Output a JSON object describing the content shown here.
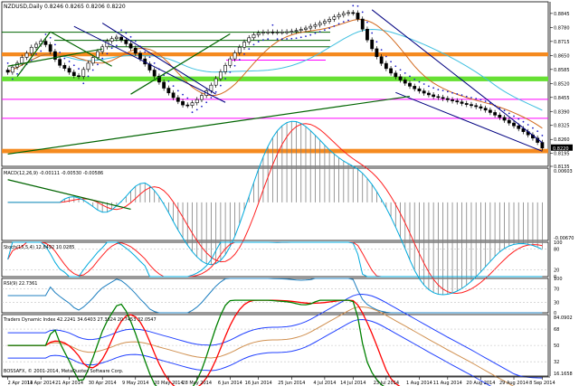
{
  "symbol_header": "NZDUSD,Daily  0.8246 0.8265 0.8206 0.8220",
  "copyright": "BOSSAFX, © 2001-2014, MetaQuotes Software Corp.",
  "colors": {
    "orange_zone": "#f58a1f",
    "green_zone": "#66e033",
    "bull_candle": "#ffffff",
    "bear_candle": "#000000",
    "sar": "#2020c8",
    "channel": "#000080",
    "trend": "#006400",
    "ma_fast": "#d2691e",
    "ma_slow": "#40c0e0",
    "support": "#ff00ff",
    "macd_signal": "#ff2020",
    "stoch_main": "#00aadd",
    "stoch_signal": "#ff2020",
    "rsi": "#2080c0",
    "tdi_price": "#008000",
    "tdi_signal": "#ff0000",
    "tdi_band": "#2040ff",
    "tdi_base": "#d09050"
  },
  "chart_data": [
    {
      "type": "candlestick",
      "name": "NZDUSD Daily",
      "x": [
        "2 Apr 2014",
        "3 Apr 2014",
        "4 Apr 2014",
        "7 Apr 2014",
        "8 Apr 2014",
        "9 Apr 2014",
        "10 Apr 2014",
        "11 Apr 2014",
        "14 Apr 2014",
        "15 Apr 2014",
        "16 Apr 2014",
        "17 Apr 2014",
        "18 Apr 2014",
        "21 Apr 2014",
        "22 Apr 2014",
        "23 Apr 2014",
        "24 Apr 2014",
        "25 Apr 2014",
        "28 Apr 2014",
        "29 Apr 2014",
        "30 Apr 2014",
        "1 May 2014",
        "2 May 2014",
        "5 May 2014",
        "6 May 2014",
        "7 May 2014",
        "8 May 2014",
        "9 May 2014",
        "12 May 2014",
        "13 May 2014",
        "14 May 2014",
        "15 May 2014",
        "16 May 2014",
        "19 May 2014",
        "20 May 2014",
        "21 May 2014",
        "22 May 2014",
        "23 May 2014",
        "26 May 2014",
        "27 May 2014",
        "28 May 2014",
        "29 May 2014",
        "30 May 2014",
        "2 Jun 2014",
        "3 Jun 2014",
        "4 Jun 2014",
        "5 Jun 2014",
        "6 Jun 2014",
        "9 Jun 2014",
        "10 Jun 2014",
        "11 Jun 2014",
        "12 Jun 2014",
        "13 Jun 2014",
        "16 Jun 2014",
        "17 Jun 2014",
        "18 Jun 2014",
        "19 Jun 2014",
        "20 Jun 2014",
        "23 Jun 2014",
        "24 Jun 2014",
        "25 Jun 2014",
        "26 Jun 2014",
        "27 Jun 2014",
        "30 Jun 2014",
        "1 Jul 2014",
        "2 Jul 2014",
        "3 Jul 2014",
        "4 Jul 2014",
        "7 Jul 2014",
        "8 Jul 2014",
        "9 Jul 2014",
        "10 Jul 2014",
        "11 Jul 2014",
        "14 Jul 2014",
        "15 Jul 2014",
        "16 Jul 2014",
        "17 Jul 2014",
        "18 Jul 2014",
        "21 Jul 2014",
        "22 Jul 2014",
        "23 Jul 2014",
        "24 Jul 2014",
        "25 Jul 2014",
        "28 Jul 2014",
        "29 Jul 2014",
        "30 Jul 2014",
        "31 Jul 2014",
        "1 Aug 2014",
        "4 Aug 2014",
        "5 Aug 2014",
        "6 Aug 2014",
        "7 Aug 2014",
        "8 Aug 2014",
        "11 Aug 2014",
        "12 Aug 2014",
        "13 Aug 2014",
        "14 Aug 2014",
        "15 Aug 2014",
        "18 Aug 2014",
        "19 Aug 2014",
        "20 Aug 2014",
        "21 Aug 2014",
        "22 Aug 2014",
        "25 Aug 2014",
        "26 Aug 2014",
        "27 Aug 2014",
        "28 Aug 2014",
        "29 Aug 2014",
        "1 Sep 2014",
        "2 Sep 2014",
        "3 Sep 2014",
        "4 Sep 2014",
        "5 Sep 2014",
        "8 Sep 2014"
      ],
      "close": [
        0.8572,
        0.8596,
        0.8614,
        0.8641,
        0.866,
        0.8688,
        0.8702,
        0.8716,
        0.87,
        0.8668,
        0.8632,
        0.8604,
        0.859,
        0.8572,
        0.8556,
        0.8552,
        0.8585,
        0.8614,
        0.864,
        0.8668,
        0.869,
        0.8716,
        0.8728,
        0.8735,
        0.8722,
        0.8704,
        0.8684,
        0.866,
        0.8634,
        0.861,
        0.8582,
        0.8554,
        0.8526,
        0.8498,
        0.8476,
        0.8454,
        0.8436,
        0.842,
        0.8418,
        0.843,
        0.8445,
        0.8464,
        0.8486,
        0.8512,
        0.8542,
        0.8574,
        0.8604,
        0.8634,
        0.8662,
        0.8688,
        0.8712,
        0.8732,
        0.8746,
        0.8754,
        0.8758,
        0.8759,
        0.8758,
        0.8758,
        0.8759,
        0.876,
        0.8762,
        0.8766,
        0.8771,
        0.8777,
        0.8785,
        0.8792,
        0.88,
        0.8808,
        0.8818,
        0.8829,
        0.8838,
        0.8845,
        0.8849,
        0.8847,
        0.8819,
        0.8772,
        0.8722,
        0.8681,
        0.8644,
        0.8613,
        0.8589,
        0.8568,
        0.8551,
        0.8536,
        0.8521,
        0.8507,
        0.8495,
        0.8485,
        0.8475,
        0.8467,
        0.8459,
        0.8455,
        0.845,
        0.8444,
        0.8439,
        0.8434,
        0.8427,
        0.8422,
        0.8417,
        0.8412,
        0.8405,
        0.8396,
        0.8385,
        0.8373,
        0.8362,
        0.8349,
        0.8336,
        0.8323,
        0.831,
        0.8296,
        0.8281,
        0.8266,
        0.8246,
        0.822
      ],
      "ylim": [
        0.8135,
        0.8899
      ],
      "y_ticks": [
        0.8845,
        0.878,
        0.8715,
        0.865,
        0.8585,
        0.852,
        0.8455,
        0.839,
        0.8325,
        0.826,
        0.8195,
        0.8135
      ],
      "last_price_label": "0.8220"
    },
    {
      "type": "line",
      "name": "MACD(12,26,9)",
      "header": "MACD(12,26,9) -0.00111 -0.00530 -0.00586",
      "y_ticks": [
        "0.00603",
        "-0.00670"
      ],
      "ylim": [
        -0.0067,
        0.00603
      ]
    },
    {
      "type": "line",
      "name": "Stoch(15,5,4)",
      "header": "Stoch(15,5,4) 12.8492 10.0285",
      "y_ticks": [
        "100",
        "80",
        "20",
        "0"
      ],
      "ylim": [
        0,
        100
      ]
    },
    {
      "type": "line",
      "name": "RSI(9)",
      "header": "RSI(9) 22.7361",
      "y_ticks": [
        "100",
        "70",
        "30",
        "0"
      ],
      "ylim": [
        0,
        100
      ]
    },
    {
      "type": "line",
      "name": "Traders Dynamic Index",
      "header": "Traders Dynamic Index 42.2241 34.6403 27.3624 20.7453 32.0547",
      "y_ticks": [
        "84.0902",
        "68",
        "50",
        "32",
        "16.1658"
      ],
      "ylim": [
        16.1658,
        84.0902
      ]
    }
  ],
  "x_axis_labels": [
    "2 Apr 2014",
    "11 Apr 2014",
    "21 Apr 2014",
    "30 Apr 2014",
    "9 May 2014",
    "20 May 2014",
    "28 May 2014",
    "6 Jun 2014",
    "16 Jun 2014",
    "25 Jun 2014",
    "4 Jul 2014",
    "14 Jul 2014",
    "23 Jul 2014",
    "1 Aug 2014",
    "11 Aug 2014",
    "20 Aug 2014",
    "29 Aug 2014",
    "8 Sep 2014"
  ]
}
